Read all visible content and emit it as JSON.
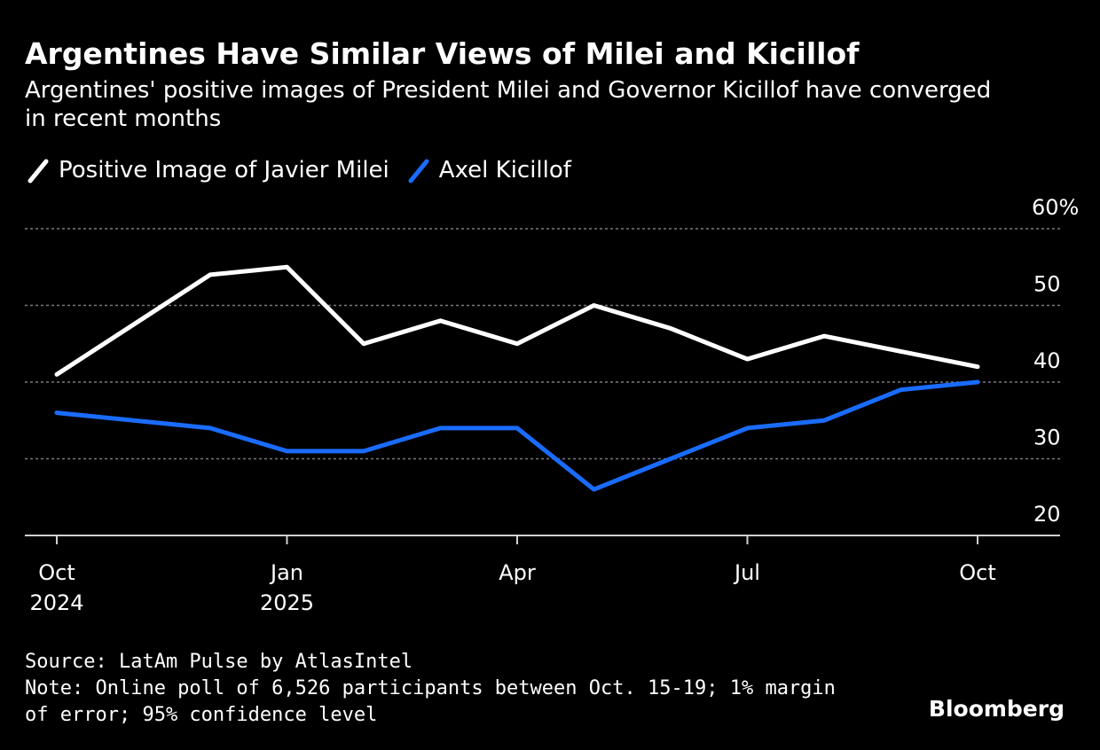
{
  "header": {
    "title": "Argentines Have Similar Views of Milei and Kicillof",
    "subtitle": "Argentines' positive images of President Milei and Governor Kicillof have converged in recent months"
  },
  "legend": [
    {
      "label": "Positive Image of Javier Milei",
      "color": "#ffffff"
    },
    {
      "label": "Axel Kicillof",
      "color": "#1a6cff"
    }
  ],
  "footer": {
    "source": "Source: LatAm Pulse by AtlasIntel",
    "note": "Note: Online poll of 6,526 participants between Oct. 15-19; 1% margin of error; 95% confidence level",
    "brand": "Bloomberg"
  },
  "chart_data": {
    "type": "line",
    "x": [
      "2024-10",
      "2024-11",
      "2024-12",
      "2025-01",
      "2025-02",
      "2025-03",
      "2025-04",
      "2025-05",
      "2025-06",
      "2025-07",
      "2025-08",
      "2025-09",
      "2025-10"
    ],
    "series": [
      {
        "name": "Positive Image of Javier Milei",
        "color": "#ffffff",
        "values": [
          41,
          47.5,
          54,
          55,
          45,
          48,
          45,
          50,
          47,
          43,
          46,
          44,
          42
        ]
      },
      {
        "name": "Axel Kicillof",
        "color": "#1a6cff",
        "values": [
          36,
          null,
          34,
          31,
          31,
          34,
          34,
          26,
          30,
          34,
          35,
          39,
          40
        ]
      }
    ],
    "ylim": [
      20,
      60
    ],
    "yticks": [
      20,
      30,
      40,
      50,
      60
    ],
    "ytick_labels": [
      "20",
      "30",
      "40",
      "50",
      "60%"
    ],
    "xticks": [
      {
        "x": "2024-10",
        "label": "Oct",
        "sublabel": "2024"
      },
      {
        "x": "2025-01",
        "label": "Jan",
        "sublabel": "2025"
      },
      {
        "x": "2025-04",
        "label": "Apr",
        "sublabel": ""
      },
      {
        "x": "2025-07",
        "label": "Jul",
        "sublabel": ""
      },
      {
        "x": "2025-10",
        "label": "Oct",
        "sublabel": ""
      }
    ],
    "grid": true,
    "y_axis_side": "right",
    "legend_position": "top-left"
  }
}
